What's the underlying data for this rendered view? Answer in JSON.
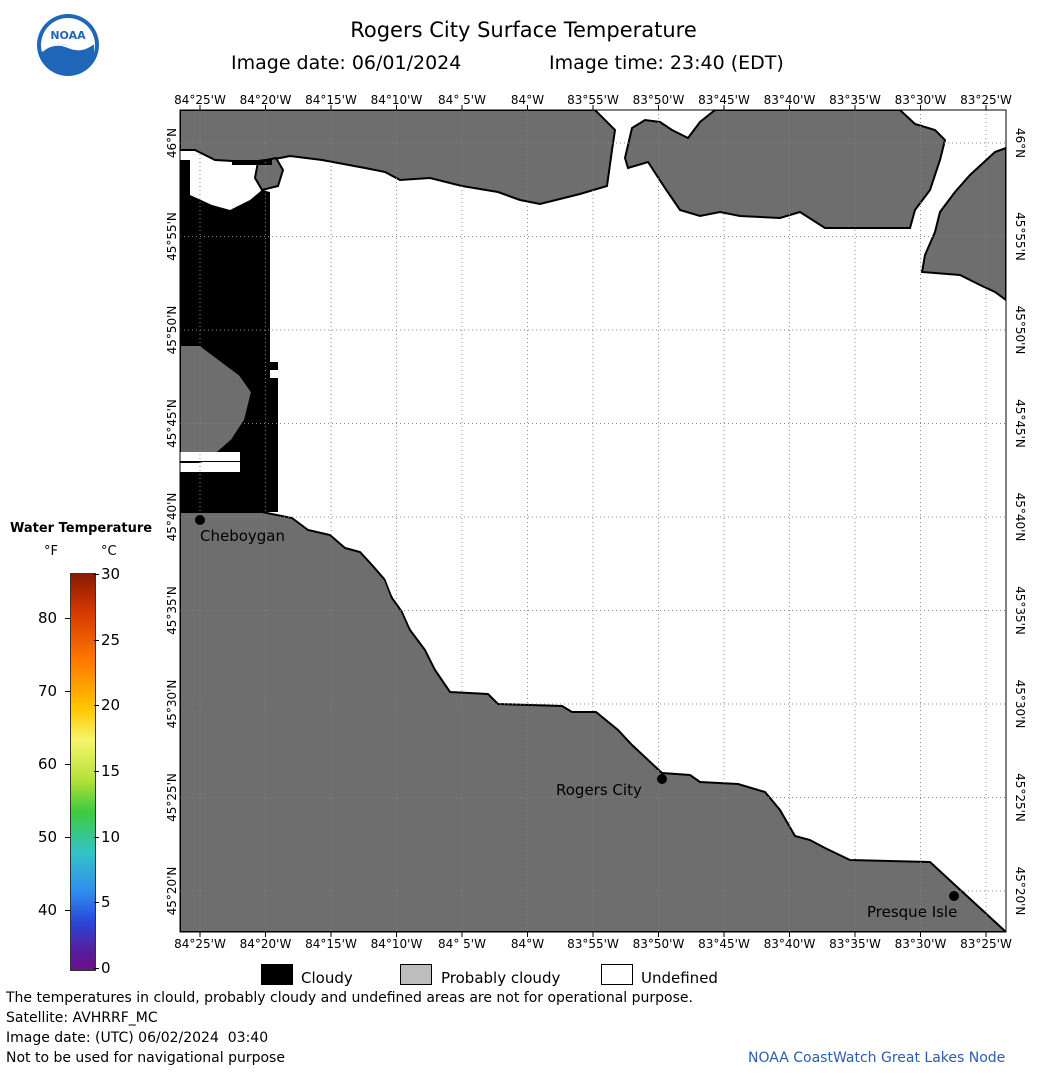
{
  "header": {
    "title": "Rogers City Surface Temperature",
    "image_date_label": "Image date: 06/01/2024",
    "image_time_label": "Image time: 23:40 (EDT)"
  },
  "map": {
    "lon_labels": [
      "84°25'W",
      "84°20'W",
      "84°15'W",
      "84°10'W",
      "84° 5'W",
      "84°W",
      "83°55'W",
      "83°50'W",
      "83°45'W",
      "83°40'W",
      "83°35'W",
      "83°30'W",
      "83°25'W"
    ],
    "lat_labels": [
      "46°N",
      "45°55'N",
      "45°50'N",
      "45°45'N",
      "45°40'N",
      "45°35'N",
      "45°30'N",
      "45°25'N",
      "45°20'N"
    ],
    "places": [
      {
        "name": "Cheboygan"
      },
      {
        "name": "Rogers City"
      },
      {
        "name": "Presque Isle"
      }
    ],
    "colors": {
      "land": "#6e6e6e",
      "cloudy": "#000000",
      "probably_cloudy": "#bdbdbd",
      "undefined": "#ffffff"
    }
  },
  "legend": {
    "title": "Water Temperature",
    "unit_f": "°F",
    "unit_c": "°C",
    "f_ticks": [
      "80",
      "70",
      "60",
      "50",
      "40"
    ],
    "c_ticks": [
      "30",
      "25",
      "20",
      "15",
      "10",
      "5",
      "0"
    ],
    "categories": [
      {
        "label": "Cloudy",
        "color": "#000000"
      },
      {
        "label": "Probably cloudy",
        "color": "#bdbdbd"
      },
      {
        "label": "Undefined",
        "color": "#ffffff"
      }
    ]
  },
  "footer": {
    "disclaimer": "The temperatures in clould, probably cloudy and undefined areas are not for operational purpose.",
    "satellite": "Satellite: AVHRRF_MC",
    "utc_date": "Image date: (UTC) 06/02/2024  03:40",
    "nav_warning": "Not to be used for navigational purpose",
    "credit": "NOAA CoastWatch Great Lakes Node"
  },
  "logo": {
    "text": "NOAA"
  }
}
